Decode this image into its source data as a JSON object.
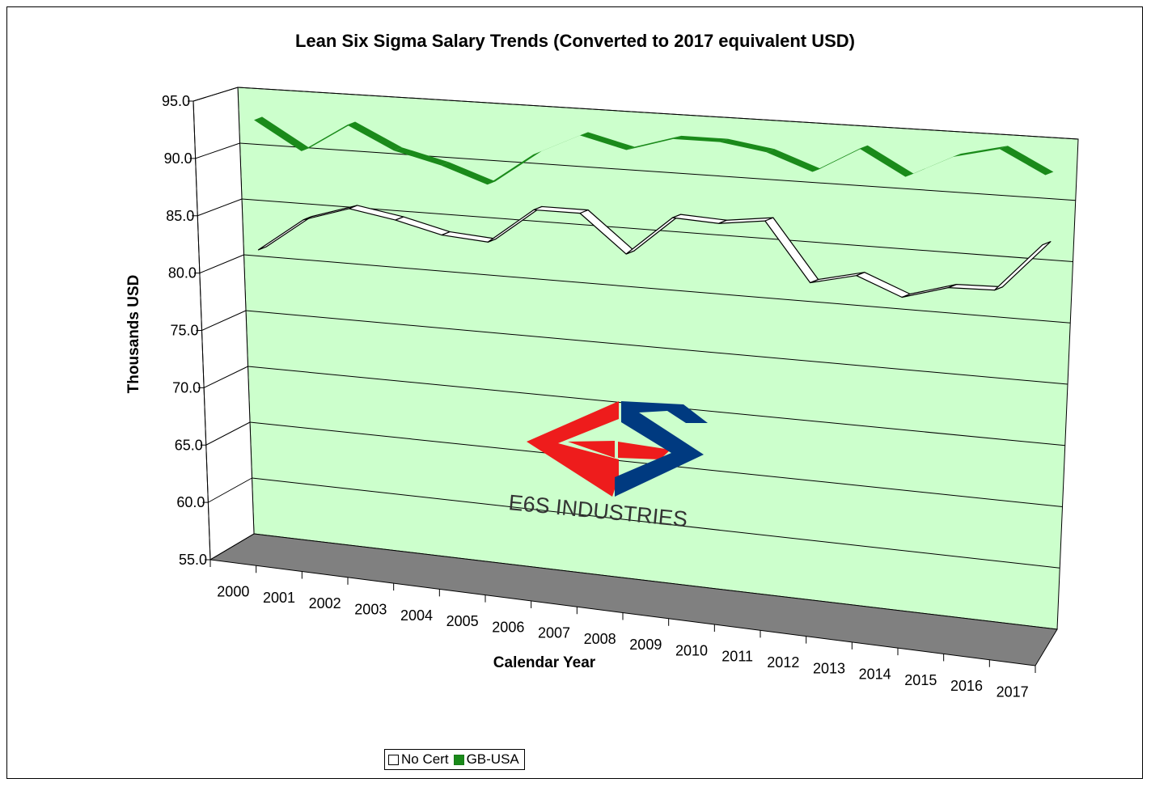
{
  "chart_data": {
    "type": "line",
    "title": "Lean Six Sigma Salary Trends (Converted to 2017 equivalent USD)",
    "xlabel": "Calendar Year",
    "ylabel": "Thousands USD",
    "ylim": [
      55,
      95
    ],
    "yticks": [
      "95.0",
      "90.0",
      "85.0",
      "80.0",
      "75.0",
      "70.0",
      "65.0",
      "60.0",
      "55.0"
    ],
    "ytick_values": [
      95,
      90,
      85,
      80,
      75,
      70,
      65,
      60,
      55
    ],
    "categories": [
      "2000",
      "2001",
      "2002",
      "2003",
      "2004",
      "2005",
      "2006",
      "2007",
      "2008",
      "2009",
      "2010",
      "2011",
      "2012",
      "2013",
      "2014",
      "2015",
      "2016",
      "2017"
    ],
    "grid": true,
    "legend_position": "bottom",
    "series": [
      {
        "name": "No Cert",
        "color": "#ffffff",
        "outline": "#000000",
        "values": [
          80.9,
          83.9,
          85.2,
          84.5,
          83.5,
          83.2,
          86.3,
          86.3,
          83.1,
          86.5,
          86.3,
          86.8,
          81.9,
          82.8,
          81.3,
          82.4,
          82.5,
          86.5
        ]
      },
      {
        "name": "GB-USA",
        "color": "#1a8a1a",
        "values": [
          92.5,
          90.0,
          92.6,
          90.6,
          89.6,
          88.2,
          91.1,
          93.0,
          92.0,
          93.2,
          93.2,
          92.6,
          91.2,
          93.4,
          91.3,
          93.2,
          94.1,
          92.2
        ]
      }
    ],
    "watermark": "E6S INDUSTRIES"
  },
  "legend": {
    "items": [
      {
        "label": "No Cert"
      },
      {
        "label": "GB-USA"
      }
    ]
  }
}
